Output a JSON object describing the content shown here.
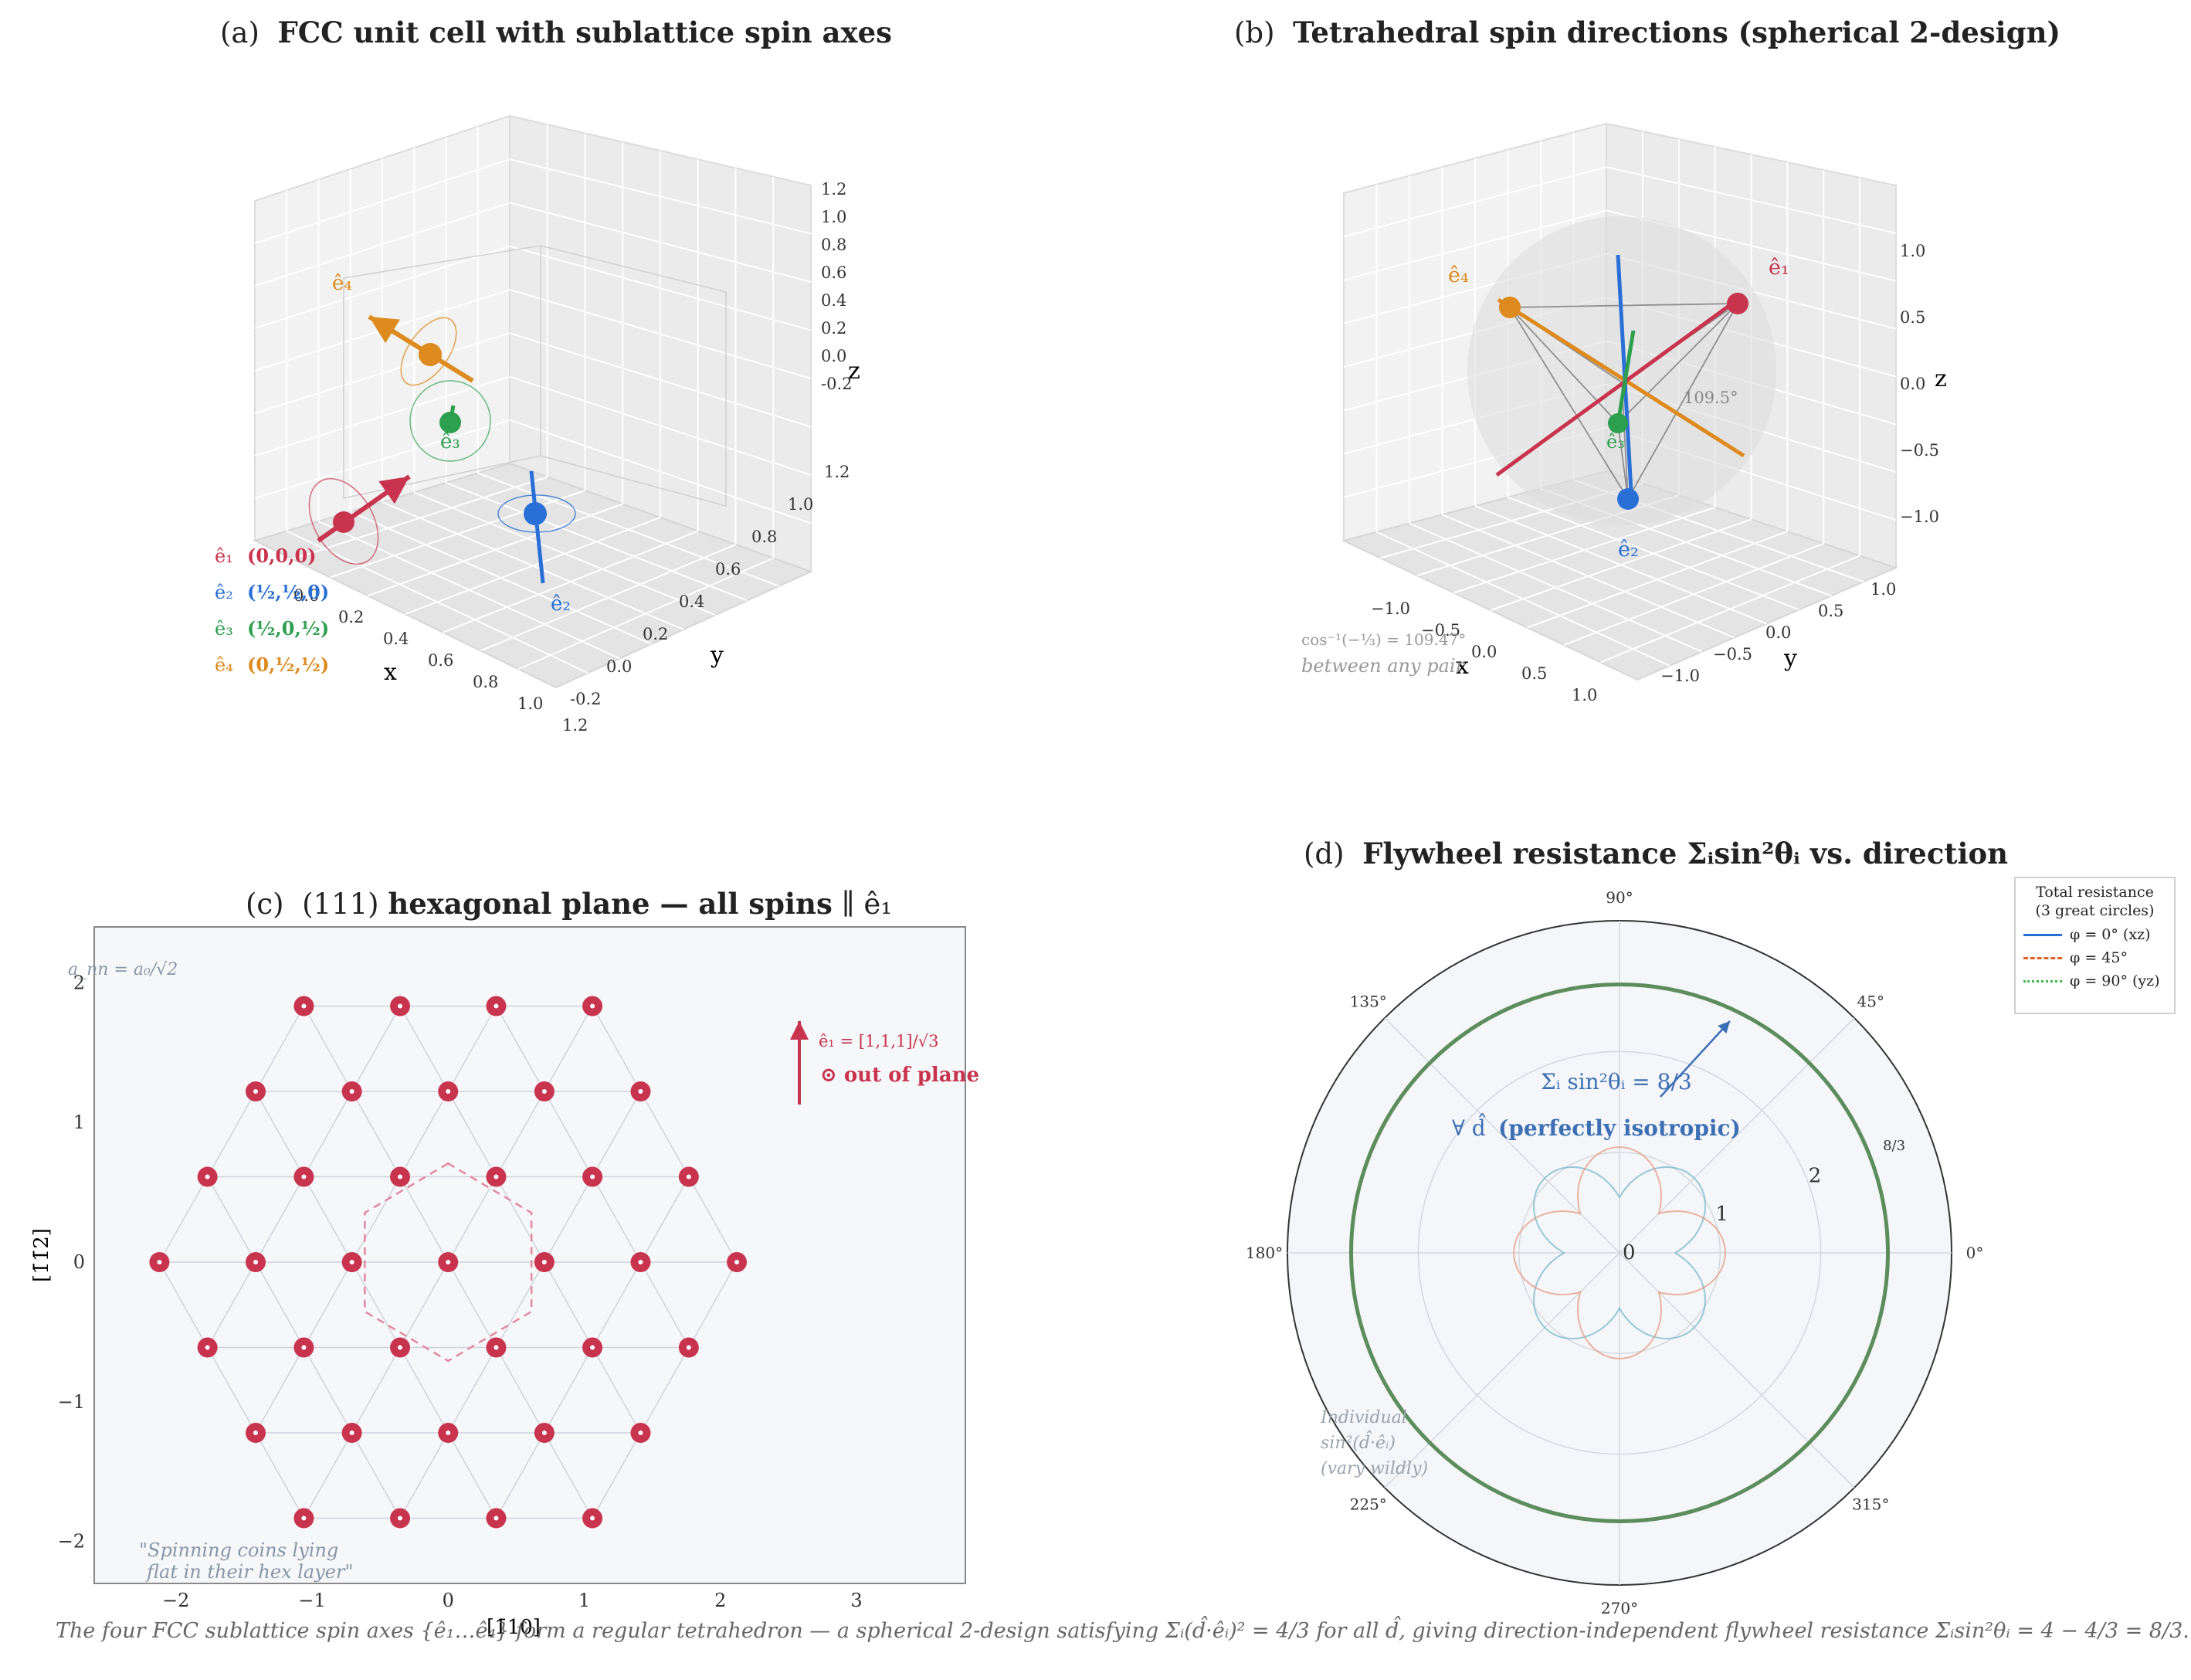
{
  "caption": "The four FCC sublattice spin axes {ê₁…ê₄} form a regular tetrahedron — a spherical 2-design satisfying Σᵢ(d̂·êᵢ)² = 4/3 for all d̂,  giving direction-independent flywheel resistance Σᵢsin²θᵢ = 4 − 4/3 = 8/3.",
  "colors": {
    "e1": "#c8334e",
    "e2": "#2a6fd6",
    "e3": "#2e9e4f",
    "e4": "#dd8a1e",
    "resist": "#5d8c5d"
  },
  "panels": {
    "a": {
      "label": "(a)",
      "title": "FCC unit cell with sublattice spin axes",
      "z_ticks": [
        "1.2",
        "1.0",
        "0.8",
        "0.6",
        "0.4",
        "0.2",
        "0.0",
        "-0.2"
      ],
      "x_ticks": [
        "0.0",
        "0.2",
        "0.4",
        "0.6",
        "0.8",
        "1.0",
        "1.2"
      ],
      "y_ticks": [
        "-0.2",
        "0.0",
        "0.2",
        "0.4",
        "0.6",
        "0.8",
        "1.0",
        "1.2"
      ],
      "xlabel": "x",
      "ylabel": "y",
      "zlabel": "z",
      "legend": [
        {
          "sym": "ê₁",
          "pos": "(0,0,0)"
        },
        {
          "sym": "ê₂",
          "pos": "(½,½,0)"
        },
        {
          "sym": "ê₃",
          "pos": "(½,0,½)"
        },
        {
          "sym": "ê₄",
          "pos": "(0,½,½)"
        }
      ],
      "labels": {
        "e2": "ê₂",
        "e3": "ê₃",
        "e4": "ê₄"
      }
    },
    "b": {
      "label": "(b)",
      "title": "Tetrahedral spin directions (spherical 2-design)",
      "z_ticks": [
        "1.0",
        "0.5",
        "0.0",
        "−0.5",
        "−1.0"
      ],
      "x_ticks": [
        "−1.0",
        "−0.5",
        "0.0",
        "0.5",
        "1.0"
      ],
      "y_ticks": [
        "−1.0",
        "−0.5",
        "0.0",
        "0.5",
        "1.0"
      ],
      "xlabel": "x",
      "ylabel": "y",
      "zlabel": "z",
      "labels": {
        "e1": "ê₁",
        "e2": "ê₂",
        "e3": "ê₃",
        "e4": "ê₄",
        "angle": "109.5°"
      },
      "note1": "cos⁻¹(−⅓) = 109.47°",
      "note2": "between any pair"
    },
    "c": {
      "label": "(c)",
      "title_pre": "(111)",
      "title_bold": "hexagonal plane — all spins",
      "title_post": "∥ ê₁",
      "xlabel": "[1̄10]",
      "ylabel": "[1̄1̄2]",
      "x_ticks": [
        "−2",
        "−1",
        "0",
        "1",
        "2",
        "3"
      ],
      "y_ticks": [
        "2",
        "1",
        "0",
        "−1",
        "−2"
      ],
      "nn_label": "a_nn = a₀/√2",
      "arrow_label": "ê₁ = [1,1,1]/√3",
      "arrow_note": "⊙ out of plane",
      "quote1": "\"Spinning coins lying",
      "quote2": "flat in their hex layer\""
    },
    "d": {
      "label": "(d)",
      "title": "Flywheel resistance Σᵢsin²θᵢ vs. direction",
      "angles": [
        "0°",
        "45°",
        "90°",
        "135°",
        "180°",
        "225°",
        "270°",
        "315°"
      ],
      "r_ticks": [
        "0",
        "1",
        "2",
        "8/3"
      ],
      "sum_label": "Σᵢ sin²θᵢ = 8/3",
      "iso_pre": "∀ d̂",
      "iso_bold": "(perfectly isotropic)",
      "indiv1": "Individual",
      "indiv2": "sin²(d̂·êᵢ)",
      "indiv3": "(vary wildly)",
      "legend_title1": "Total resistance",
      "legend_title2": "(3 great circles)",
      "legend": [
        {
          "label": "φ = 0° (xz)",
          "style": "solid",
          "color": "#2a6fd6"
        },
        {
          "label": "φ = 45°",
          "style": "dashed",
          "color": "#e0642a"
        },
        {
          "label": "φ = 90° (yz)",
          "style": "dotted",
          "color": "#3fb84f"
        }
      ]
    }
  },
  "chart_data": [
    {
      "type": "scatter",
      "panel": "a",
      "title": "FCC unit cell with sublattice spin axes",
      "xlabel": "x",
      "ylabel": "y",
      "zlabel": "z",
      "xlim": [
        -0.2,
        1.2
      ],
      "ylim": [
        -0.2,
        1.2
      ],
      "zlim": [
        -0.2,
        1.2
      ],
      "points": [
        {
          "name": "ê₁",
          "x": 0,
          "y": 0,
          "z": 0
        },
        {
          "name": "ê₂",
          "x": 0.5,
          "y": 0.5,
          "z": 0
        },
        {
          "name": "ê₃",
          "x": 0.5,
          "y": 0,
          "z": 0.5
        },
        {
          "name": "ê₄",
          "x": 0,
          "y": 0.5,
          "z": 0.5
        }
      ]
    },
    {
      "type": "scatter",
      "panel": "b",
      "title": "Tetrahedral spin directions (spherical 2-design)",
      "xlim": [
        -1,
        1
      ],
      "ylim": [
        -1,
        1
      ],
      "zlim": [
        -1,
        1
      ],
      "points": [
        {
          "name": "ê₁",
          "x": 0.577,
          "y": 0.577,
          "z": 0.577
        },
        {
          "name": "ê₂",
          "x": 0.577,
          "y": -0.577,
          "z": -0.577
        },
        {
          "name": "ê₃",
          "x": -0.577,
          "y": 0.577,
          "z": -0.577
        },
        {
          "name": "ê₄",
          "x": -0.577,
          "y": -0.577,
          "z": 0.577
        }
      ]
    },
    {
      "type": "scatter",
      "panel": "c",
      "xlabel": "[1̄10]",
      "ylabel": "[1̄1̄2]",
      "xlim": [
        -2.6,
        3.8
      ],
      "ylim": [
        -2.3,
        2.4
      ],
      "row_y": [
        1.833,
        1.222,
        0.611,
        0,
        -0.611,
        -1.222,
        -1.833
      ],
      "row_x": [
        [
          -1.06,
          -0.353,
          0.353,
          1.06
        ],
        [
          -1.414,
          -0.707,
          0,
          0.707,
          1.414
        ],
        [
          -1.768,
          -1.06,
          -0.353,
          0.353,
          1.06,
          1.768
        ],
        [
          -2.121,
          -1.414,
          -0.707,
          0,
          0.707,
          1.414,
          2.121
        ],
        [
          -1.768,
          -1.06,
          -0.353,
          0.353,
          1.06,
          1.768
        ],
        [
          -1.414,
          -0.707,
          0,
          0.707,
          1.414
        ],
        [
          -1.06,
          -0.353,
          0.353,
          1.06
        ]
      ]
    },
    {
      "type": "line",
      "panel": "d",
      "projection": "polar",
      "rlim": [
        0,
        3.3
      ],
      "series": [
        {
          "name": "φ = 0° (xz)",
          "r_const": 2.667
        },
        {
          "name": "φ = 45°",
          "r_const": 2.667
        },
        {
          "name": "φ = 90° (yz)",
          "r_const": 2.667
        }
      ]
    }
  ]
}
